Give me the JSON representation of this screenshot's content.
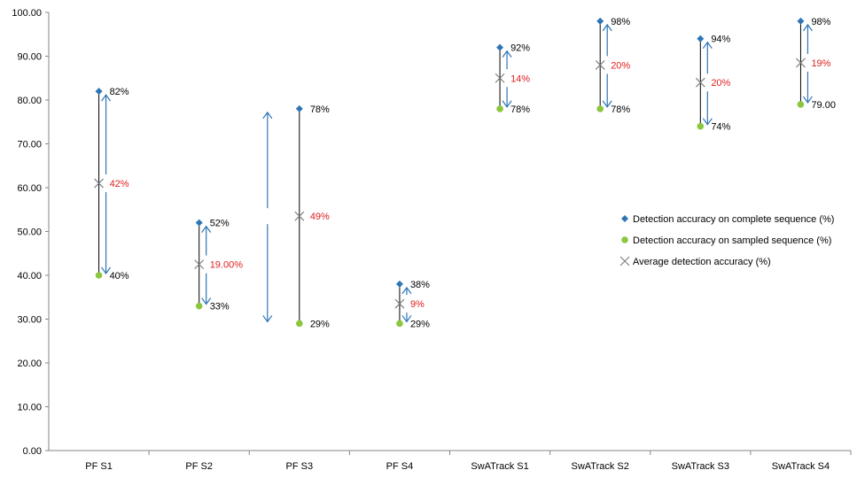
{
  "chart_data": {
    "type": "scatter",
    "title": "",
    "xlabel": "",
    "ylabel": "",
    "ylim": [
      0,
      100
    ],
    "yticks": [
      "0.00",
      "10.00",
      "20.00",
      "30.00",
      "40.00",
      "50.00",
      "60.00",
      "70.00",
      "80.00",
      "90.00",
      "100.00"
    ],
    "categories": [
      "PF S1",
      "PF S2",
      "PF S3",
      "PF S4",
      "SwATrack S1",
      "SwATrack S2",
      "SwATrack S3",
      "SwATrack S4"
    ],
    "series": [
      {
        "name": "Detection accuracy on complete sequence (%)",
        "marker": "diamond",
        "color": "#2E75B6",
        "values": [
          82,
          52,
          78,
          38,
          92,
          98,
          94,
          98
        ]
      },
      {
        "name": "Detection accuracy on sampled sequence (%)",
        "marker": "circle",
        "color": "#8CC63F",
        "values": [
          40,
          33,
          29,
          29,
          78,
          78,
          74,
          79
        ]
      },
      {
        "name": "Average detection accuracy (%)",
        "marker": "x",
        "color": "#7F7F7F",
        "values": [
          61,
          42.5,
          53.5,
          33.5,
          85,
          88,
          84,
          88.5
        ]
      }
    ],
    "top_labels": [
      "82%",
      "52%",
      "78%",
      "38%",
      "92%",
      "98%",
      "94%",
      "98%"
    ],
    "bottom_labels": [
      "40%",
      "33%",
      "29%",
      "29%",
      "78%",
      "78%",
      "74%",
      "79.00"
    ],
    "diff_labels": [
      "42%",
      "19.00%",
      "49%",
      "9%",
      "14%",
      "20%",
      "20%",
      "19%"
    ],
    "diff_label_color": "#E02020",
    "arrow_color": "#2E75B6",
    "legend_position": "right"
  }
}
